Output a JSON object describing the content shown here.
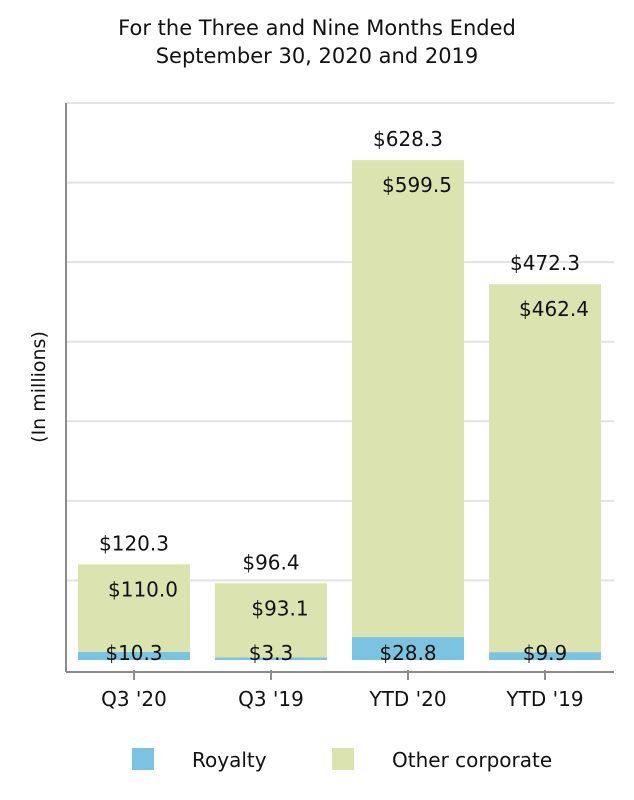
{
  "chart_data": {
    "type": "bar",
    "stacked": true,
    "title": [
      "For the Three and Nine Months Ended",
      "September 30, 2020 and 2019"
    ],
    "xlabel": "",
    "ylabel": "(In millions)",
    "ylim": [
      0,
      700
    ],
    "grid": true,
    "y_tick_labels_shown": false,
    "legend_position": "bottom",
    "categories": [
      "Q3 '20",
      "Q3 '19",
      "YTD '20",
      "YTD '19"
    ],
    "series": [
      {
        "name": "Royalty",
        "color": "#7cc3e1",
        "values": [
          10.3,
          3.3,
          28.8,
          9.9
        ],
        "labels": [
          "$10.3",
          "$3.3",
          "$28.8",
          "$9.9"
        ]
      },
      {
        "name": "Other corporate",
        "color": "#dbe4b0",
        "values": [
          110.0,
          93.1,
          599.5,
          462.4
        ],
        "labels": [
          "$110.0",
          "$93.1",
          "$599.5",
          "$462.4"
        ]
      }
    ],
    "totals": [
      120.3,
      96.4,
      628.3,
      472.3
    ],
    "total_labels": [
      "$120.3",
      "$96.4",
      "$628.3",
      "$472.3"
    ]
  }
}
